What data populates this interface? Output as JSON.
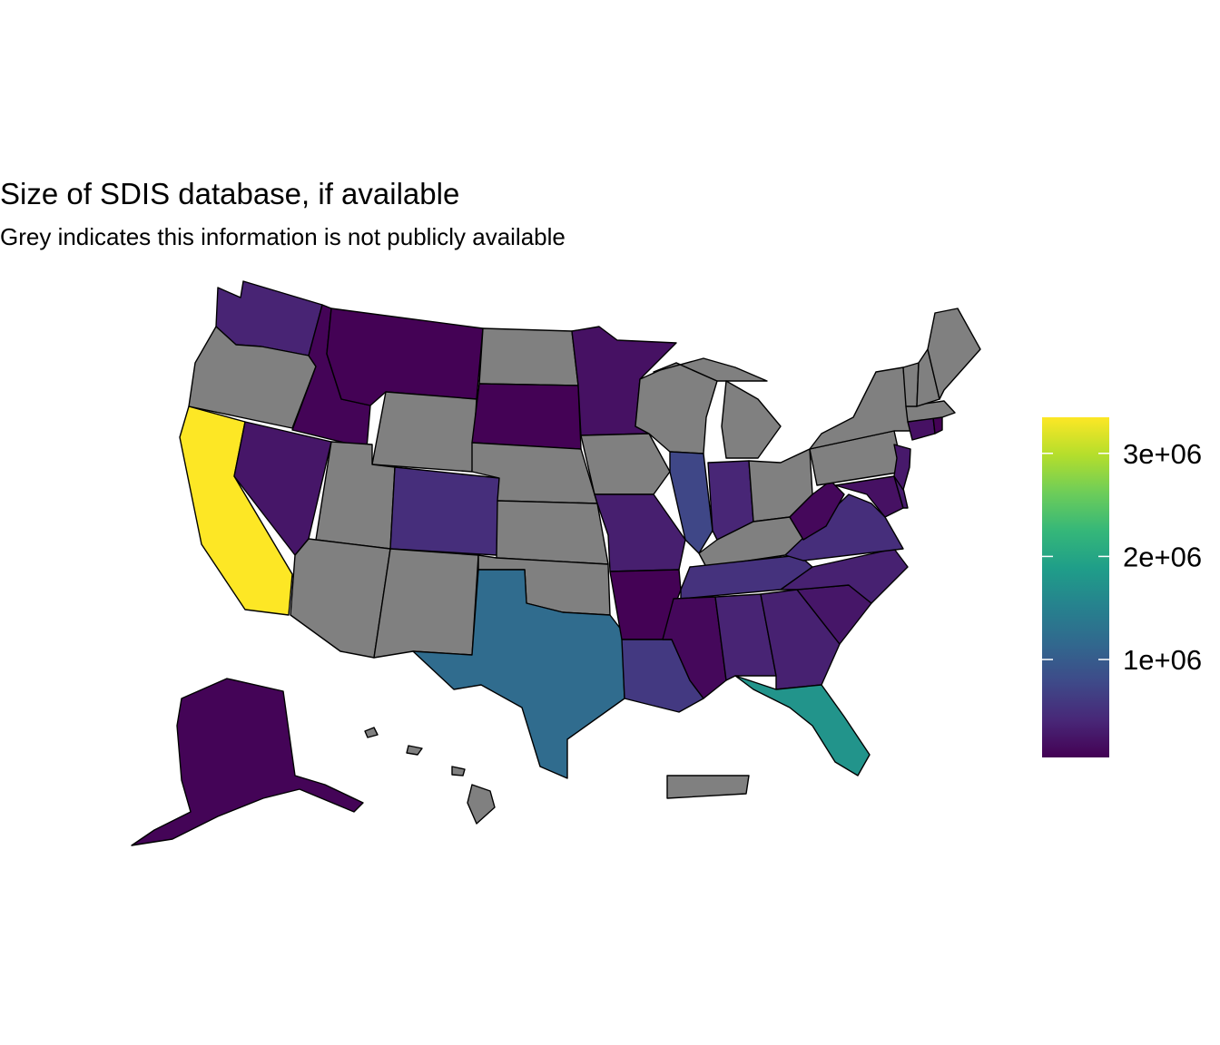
{
  "title": "Size of SDIS database, if available",
  "subtitle": "Grey indicates this information is not publicly available",
  "legend": {
    "ticks": [
      {
        "label": "1e+06",
        "value": 1000000
      },
      {
        "label": "2e+06",
        "value": 2000000
      },
      {
        "label": "3e+06",
        "value": 3000000
      }
    ],
    "min": 50000,
    "max": 3350000,
    "palette": [
      "#440154",
      "#482878",
      "#3E4A89",
      "#31688E",
      "#26828E",
      "#1F9E89",
      "#35B779",
      "#6DCD59",
      "#B4DE2C",
      "#FDE725"
    ]
  },
  "colors": {
    "unavailable": "#808080",
    "border": "#000000",
    "background": "#FFFFFF"
  },
  "chart_data": {
    "type": "choropleth",
    "fill_scale": "viridis",
    "states": [
      {
        "state": "Washington",
        "value": 380000
      },
      {
        "state": "Oregon",
        "value": null
      },
      {
        "state": "California",
        "value": 3350000
      },
      {
        "state": "Nevada",
        "value": 250000
      },
      {
        "state": "Idaho",
        "value": 80000
      },
      {
        "state": "Montana",
        "value": 60000
      },
      {
        "state": "Wyoming",
        "value": null
      },
      {
        "state": "Utah",
        "value": null
      },
      {
        "state": "Arizona",
        "value": null
      },
      {
        "state": "Colorado",
        "value": 480000
      },
      {
        "state": "New Mexico",
        "value": null
      },
      {
        "state": "North Dakota",
        "value": null
      },
      {
        "state": "South Dakota",
        "value": 60000
      },
      {
        "state": "Nebraska",
        "value": null
      },
      {
        "state": "Kansas",
        "value": null
      },
      {
        "state": "Oklahoma",
        "value": null
      },
      {
        "state": "Texas",
        "value": 1200000
      },
      {
        "state": "Minnesota",
        "value": 200000
      },
      {
        "state": "Iowa",
        "value": null
      },
      {
        "state": "Missouri",
        "value": 330000
      },
      {
        "state": "Arkansas",
        "value": 60000
      },
      {
        "state": "Louisiana",
        "value": 600000
      },
      {
        "state": "Wisconsin",
        "value": null
      },
      {
        "state": "Illinois",
        "value": 750000
      },
      {
        "state": "Michigan",
        "value": null
      },
      {
        "state": "Indiana",
        "value": 400000
      },
      {
        "state": "Ohio",
        "value": null
      },
      {
        "state": "Kentucky",
        "value": null
      },
      {
        "state": "Tennessee",
        "value": 520000
      },
      {
        "state": "Mississippi",
        "value": 120000
      },
      {
        "state": "Alabama",
        "value": 380000
      },
      {
        "state": "Georgia",
        "value": 350000
      },
      {
        "state": "Florida",
        "value": 1750000
      },
      {
        "state": "South Carolina",
        "value": 250000
      },
      {
        "state": "North Carolina",
        "value": 350000
      },
      {
        "state": "Virginia",
        "value": 480000
      },
      {
        "state": "West Virginia",
        "value": 120000
      },
      {
        "state": "Pennsylvania",
        "value": null
      },
      {
        "state": "New York",
        "value": null
      },
      {
        "state": "Maryland",
        "value": 200000
      },
      {
        "state": "Delaware",
        "value": 300000
      },
      {
        "state": "New Jersey",
        "value": 280000
      },
      {
        "state": "Connecticut",
        "value": 200000
      },
      {
        "state": "Rhode Island",
        "value": 60000
      },
      {
        "state": "Massachusetts",
        "value": null
      },
      {
        "state": "Vermont",
        "value": null
      },
      {
        "state": "New Hampshire",
        "value": null
      },
      {
        "state": "Maine",
        "value": null
      },
      {
        "state": "Alaska",
        "value": 80000
      },
      {
        "state": "Hawaii",
        "value": null
      },
      {
        "state": "Puerto Rico",
        "value": null
      }
    ]
  }
}
